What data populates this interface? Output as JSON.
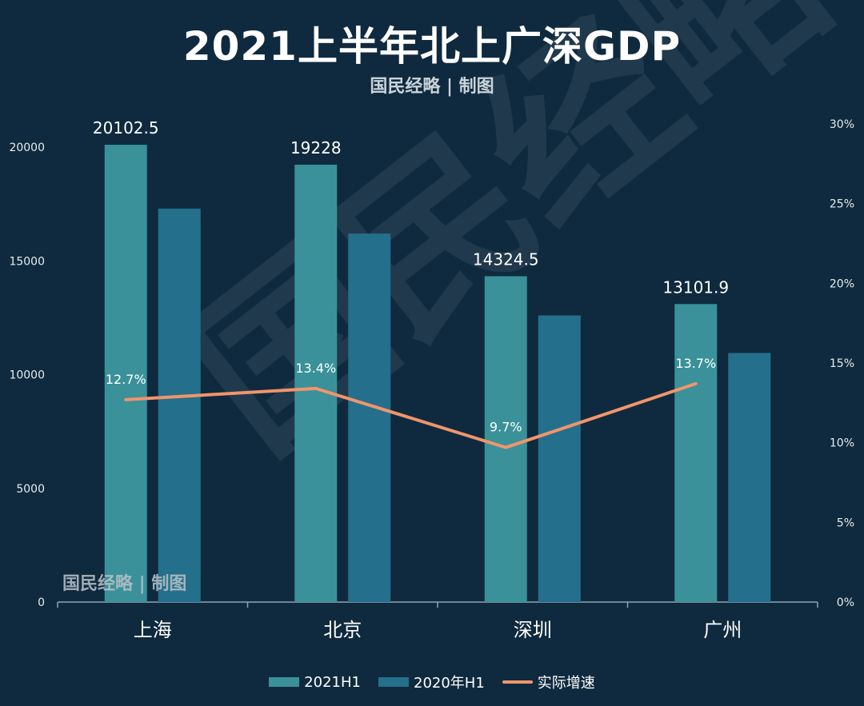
{
  "title": "2021上半年北上广深GDP",
  "subtitle": "国民经略 | 制图",
  "watermark_small": "国民经略 | 制图",
  "watermark_big": "国民经略",
  "colors": {
    "bar_2021": "#3a9199",
    "bar_2020": "#246f8c",
    "line": "#f0956b",
    "axis": "#8fa3b0"
  },
  "chart_data": {
    "type": "bar",
    "categories": [
      "上海",
      "北京",
      "深圳",
      "广州"
    ],
    "series": [
      {
        "name": "2021H1",
        "values": [
          20102.5,
          19228,
          14324.5,
          13101.9
        ],
        "labels": [
          "20102.5",
          "19228",
          "14324.5",
          "13101.9"
        ]
      },
      {
        "name": "2020年H1",
        "values": [
          17300,
          16200,
          12600,
          10950
        ]
      }
    ],
    "line_series": {
      "name": "实际增速",
      "values": [
        12.7,
        13.4,
        9.7,
        13.7
      ],
      "labels": [
        "12.7%",
        "13.4%",
        "9.7%",
        "13.7%"
      ],
      "axis": "right"
    },
    "ylim": [
      0,
      20000
    ],
    "y_ticks": [
      "0",
      "5000",
      "10000",
      "15000",
      "20000"
    ],
    "y2lim": [
      0,
      30
    ],
    "y2_ticks": [
      "0%",
      "5%",
      "10%",
      "15%",
      "20%",
      "25%",
      "30%"
    ],
    "legend": [
      "2021H1",
      "2020年H1",
      "实际增速"
    ]
  }
}
